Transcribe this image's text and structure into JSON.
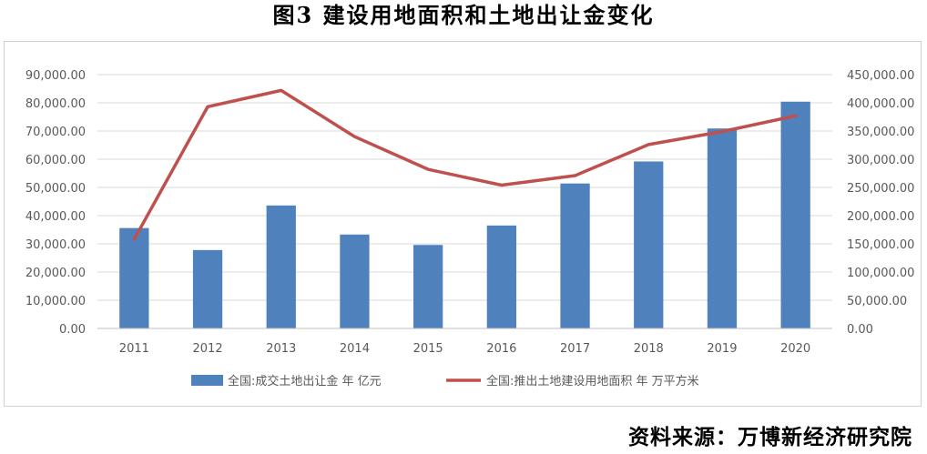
{
  "title": "图3 建设用地面积和土地出让金变化",
  "source": "资料来源：万博新经济研究院",
  "colors": {
    "bar": "#4f81bd",
    "line": "#c0504d",
    "grid": "#d9d9d9",
    "axis": "#bfbfbf",
    "text": "#595959"
  },
  "chart_data": {
    "type": "bar",
    "categories": [
      "2011",
      "2012",
      "2013",
      "2014",
      "2015",
      "2016",
      "2017",
      "2018",
      "2019",
      "2020"
    ],
    "series": [
      {
        "name": "全国:成交土地出让金 年 亿元",
        "type": "bar",
        "axis": "left",
        "values": [
          35600,
          27800,
          43600,
          33300,
          29600,
          36500,
          51400,
          59200,
          70900,
          80400
        ]
      },
      {
        "name": "全国:推出土地建设用地面积 年 万平方米",
        "type": "line",
        "axis": "right",
        "values": [
          158000,
          393000,
          422000,
          340000,
          282000,
          254000,
          271000,
          326000,
          349000,
          377000
        ]
      }
    ],
    "y_left": {
      "min": 0,
      "max": 90000,
      "step": 10000,
      "ticks": [
        "0.00",
        "10,000.00",
        "20,000.00",
        "30,000.00",
        "40,000.00",
        "50,000.00",
        "60,000.00",
        "70,000.00",
        "80,000.00",
        "90,000.00"
      ]
    },
    "y_right": {
      "min": 0,
      "max": 450000,
      "step": 50000,
      "ticks": [
        "0.00",
        "50,000.00",
        "100,000.00",
        "150,000.00",
        "200,000.00",
        "250,000.00",
        "300,000.00",
        "350,000.00",
        "400,000.00",
        "450,000.00"
      ]
    },
    "grid": true,
    "legend_position": "bottom"
  }
}
